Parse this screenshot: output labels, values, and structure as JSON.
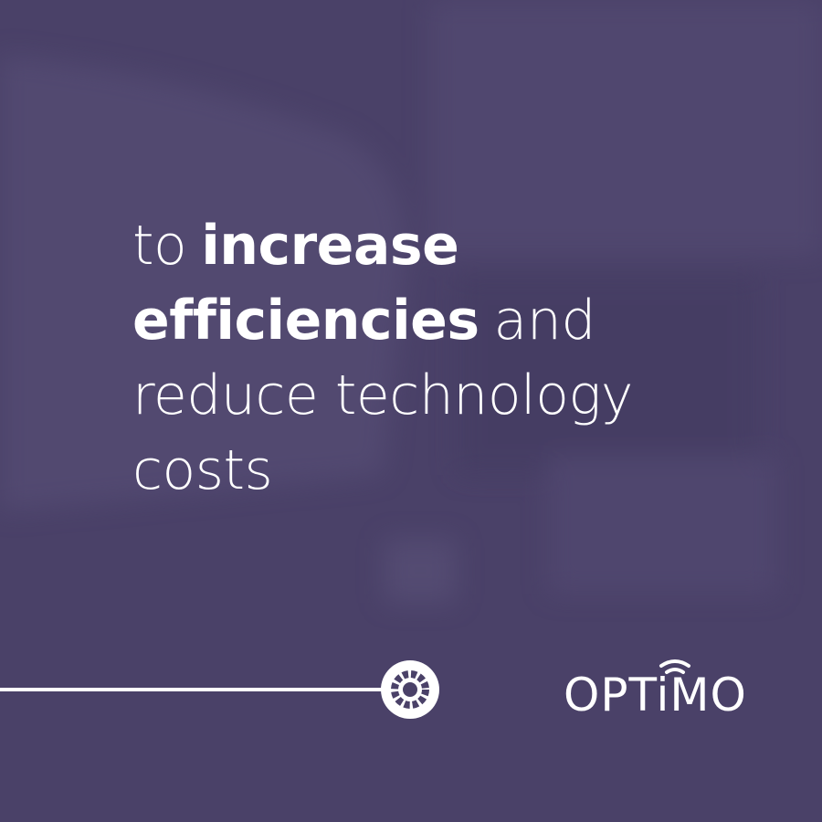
{
  "headline": {
    "lines": [
      [
        {
          "text": "to",
          "bold": false
        },
        {
          "text": "increase",
          "bold": true
        }
      ],
      [
        {
          "text": "efficiencies",
          "bold": true
        },
        {
          "text": "and",
          "bold": false
        }
      ],
      [
        {
          "text": "reduce technology",
          "bold": false
        }
      ],
      [
        {
          "text": "costs",
          "bold": false
        }
      ]
    ]
  },
  "logo": {
    "text": "OPTiMO"
  }
}
